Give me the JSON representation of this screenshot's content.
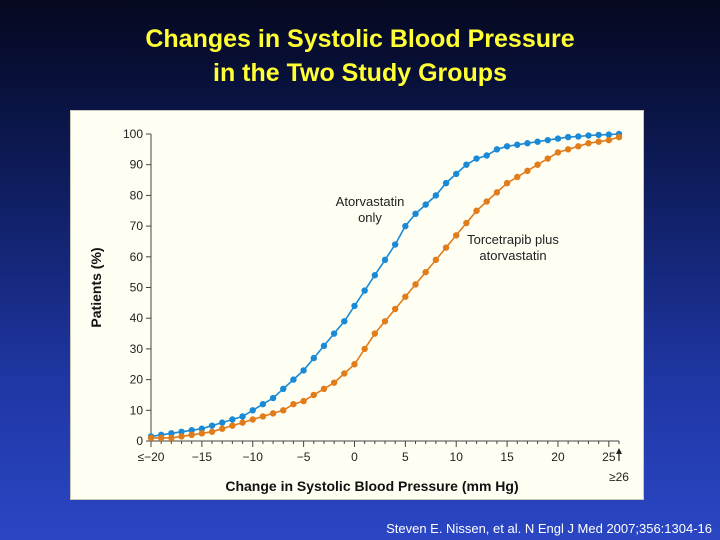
{
  "slide": {
    "title_line1": "Changes in Systolic Blood Pressure",
    "title_line2": "in the Two Study Groups",
    "citation": "Steven E. Nissen, et al. N Engl J Med 2007;356:1304-16"
  },
  "chart_data": {
    "type": "line",
    "xlabel": "Change in Systolic Blood Pressure (mm Hg)",
    "ylabel": "Patients (%)",
    "xlim": [
      -20,
      26
    ],
    "ylim": [
      0,
      100
    ],
    "x_ticks": [
      {
        "value": -20,
        "label": "≤−20"
      },
      {
        "value": -15,
        "label": "−15"
      },
      {
        "value": -10,
        "label": "−10"
      },
      {
        "value": -5,
        "label": "−5"
      },
      {
        "value": 0,
        "label": "0"
      },
      {
        "value": 5,
        "label": "5"
      },
      {
        "value": 10,
        "label": "10"
      },
      {
        "value": 15,
        "label": "15"
      },
      {
        "value": 20,
        "label": "20"
      },
      {
        "value": 25,
        "label": "25"
      }
    ],
    "x_extra_label": "≥26",
    "y_ticks": [
      0,
      10,
      20,
      30,
      40,
      50,
      60,
      70,
      80,
      90,
      100
    ],
    "grid": false,
    "x": [
      -20,
      -19,
      -18,
      -17,
      -16,
      -15,
      -14,
      -13,
      -12,
      -11,
      -10,
      -9,
      -8,
      -7,
      -6,
      -5,
      -4,
      -3,
      -2,
      -1,
      0,
      1,
      2,
      3,
      4,
      5,
      6,
      7,
      8,
      9,
      10,
      11,
      12,
      13,
      14,
      15,
      16,
      17,
      18,
      19,
      20,
      21,
      22,
      23,
      24,
      25,
      26
    ],
    "series": [
      {
        "name": "Atorvastatin only",
        "color": "#1a8ad6",
        "values": [
          1.5,
          2,
          2.5,
          3,
          3.5,
          4,
          5,
          6,
          7,
          8,
          10,
          12,
          14,
          17,
          20,
          23,
          27,
          31,
          35,
          39,
          44,
          49,
          54,
          59,
          64,
          70,
          74,
          77,
          80,
          84,
          87,
          90,
          92,
          93,
          95,
          96,
          96.5,
          97,
          97.5,
          98,
          98.5,
          99,
          99.2,
          99.5,
          99.7,
          99.8,
          100
        ]
      },
      {
        "name": "Torcetrapib plus atorvastatin",
        "color": "#e07c1a",
        "values": [
          1,
          1,
          1,
          1.5,
          2,
          2.5,
          3,
          4,
          5,
          6,
          7,
          8,
          9,
          10,
          12,
          13,
          15,
          17,
          19,
          22,
          25,
          30,
          35,
          39,
          43,
          47,
          51,
          55,
          59,
          63,
          67,
          71,
          75,
          78,
          81,
          84,
          86,
          88,
          90,
          92,
          94,
          95,
          96,
          97,
          97.5,
          98,
          99
        ]
      }
    ],
    "annotations": [
      {
        "lines": [
          "Atorvastatin",
          "only"
        ]
      },
      {
        "lines": [
          "Torcetrapib plus",
          "atorvastatin"
        ]
      }
    ]
  }
}
